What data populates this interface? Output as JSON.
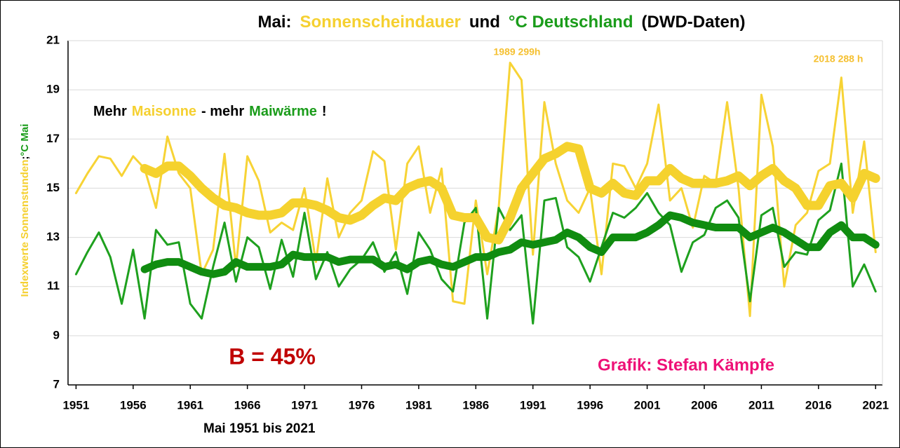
{
  "chart_data": {
    "type": "line",
    "title": [
      {
        "text": "Mai:",
        "color": "#000000"
      },
      {
        "text": "Sonnenscheindauer",
        "color": "#f5d030"
      },
      {
        "text": "und",
        "color": "#000000"
      },
      {
        "text": "°C Deutschland",
        "color": "#1a9c1a"
      },
      {
        "text": "(DWD-Daten)",
        "color": "#000000"
      }
    ],
    "subtitle": [
      {
        "text": "Mehr",
        "color": "#000000"
      },
      {
        "text": "Maisonne",
        "color": "#f5d030"
      },
      {
        "text": "- mehr",
        "color": "#000000"
      },
      {
        "text": "Maiwärme",
        "color": "#1a9c1a"
      },
      {
        "text": "!",
        "color": "#000000"
      }
    ],
    "y_label": [
      {
        "text": "Indexwerte Sonnenstunden",
        "color": "#f5d030"
      },
      {
        "text": ";",
        "color": "#000000"
      },
      {
        "text": "°C Mai",
        "color": "#1a9c1a"
      }
    ],
    "x_label": "Mai 1951 bis 2021",
    "annotations": [
      {
        "text": "1989 299h",
        "color": "#f5c030"
      },
      {
        "text": "2018 288 h",
        "color": "#f5c030"
      },
      {
        "text": "B = 45%",
        "color": "#c00000"
      },
      {
        "text": "Grafik: Stefan Kämpfe",
        "color": "#ee1177"
      }
    ],
    "x": [
      1951,
      1952,
      1953,
      1954,
      1955,
      1956,
      1957,
      1958,
      1959,
      1960,
      1961,
      1962,
      1963,
      1964,
      1965,
      1966,
      1967,
      1968,
      1969,
      1970,
      1971,
      1972,
      1973,
      1974,
      1975,
      1976,
      1977,
      1978,
      1979,
      1980,
      1981,
      1982,
      1983,
      1984,
      1985,
      1986,
      1987,
      1988,
      1989,
      1990,
      1991,
      1992,
      1993,
      1994,
      1995,
      1996,
      1997,
      1998,
      1999,
      2000,
      2001,
      2002,
      2003,
      2004,
      2005,
      2006,
      2007,
      2008,
      2009,
      2010,
      2011,
      2012,
      2013,
      2014,
      2015,
      2016,
      2017,
      2018,
      2019,
      2020,
      2021
    ],
    "series": [
      {
        "color": "#f7d335",
        "width": 3,
        "values": [
          14.8,
          15.6,
          16.3,
          16.2,
          15.5,
          16.3,
          15.8,
          14.2,
          17.1,
          15.6,
          15.0,
          11.5,
          12.5,
          16.4,
          11.8,
          16.3,
          15.3,
          13.2,
          13.6,
          13.3,
          15.0,
          12.0,
          15.4,
          13.0,
          14.0,
          14.5,
          16.5,
          16.1,
          12.5,
          16.0,
          16.7,
          14.0,
          15.8,
          10.4,
          10.3,
          14.5,
          11.5,
          14.2,
          20.1,
          19.4,
          12.3,
          18.5,
          16.0,
          14.5,
          14.0,
          15.0,
          11.5,
          16.0,
          15.9,
          15.0,
          16.0,
          18.4,
          14.5,
          15.0,
          13.4,
          15.5,
          15.2,
          18.5,
          15.0,
          9.8,
          18.8,
          16.7,
          11.0,
          13.5,
          14.0,
          15.7,
          16.0,
          19.5,
          14.0,
          16.9,
          12.4
        ]
      },
      {
        "color": "#1ea01e",
        "width": 3,
        "values": [
          11.5,
          12.4,
          13.2,
          12.2,
          10.3,
          12.5,
          9.7,
          13.3,
          12.7,
          12.8,
          10.3,
          9.7,
          11.8,
          13.6,
          11.2,
          13.0,
          12.6,
          10.9,
          12.9,
          11.4,
          14.0,
          11.3,
          12.4,
          11.0,
          11.7,
          12.1,
          12.8,
          11.6,
          12.4,
          10.7,
          13.2,
          12.5,
          11.3,
          10.8,
          13.6,
          14.2,
          9.7,
          14.2,
          13.3,
          13.9,
          9.5,
          14.5,
          14.6,
          12.6,
          12.2,
          11.2,
          12.6,
          14.0,
          13.8,
          14.2,
          14.8,
          14.0,
          13.5,
          11.6,
          12.8,
          13.1,
          14.2,
          14.5,
          13.8,
          10.4,
          13.9,
          14.2,
          11.8,
          12.4,
          12.3,
          13.7,
          14.1,
          16.0,
          11.0,
          11.9,
          10.8
        ]
      },
      {
        "color": "#f5d22e",
        "width": 13,
        "values": [
          null,
          null,
          null,
          null,
          null,
          null,
          15.8,
          15.6,
          15.9,
          15.9,
          15.5,
          15.0,
          14.6,
          14.3,
          14.2,
          14.0,
          13.9,
          13.9,
          14.0,
          14.4,
          14.4,
          14.3,
          14.1,
          13.8,
          13.7,
          13.9,
          14.3,
          14.6,
          14.5,
          15.0,
          15.2,
          15.3,
          15.0,
          13.9,
          13.8,
          13.8,
          13.0,
          12.9,
          13.8,
          15.0,
          15.6,
          16.2,
          16.4,
          16.7,
          16.6,
          15.0,
          14.8,
          15.2,
          14.8,
          14.7,
          15.3,
          15.3,
          15.8,
          15.4,
          15.2,
          15.2,
          15.2,
          15.3,
          15.5,
          15.1,
          15.5,
          15.8,
          15.3,
          15.0,
          14.3,
          14.3,
          15.1,
          15.2,
          14.6,
          15.6,
          15.4
        ]
      },
      {
        "color": "#108c10",
        "width": 11,
        "values": [
          null,
          null,
          null,
          null,
          null,
          null,
          11.7,
          11.9,
          12.0,
          12.0,
          11.8,
          11.6,
          11.5,
          11.6,
          12.0,
          11.8,
          11.8,
          11.8,
          11.9,
          12.3,
          12.2,
          12.2,
          12.2,
          12.0,
          12.1,
          12.1,
          12.1,
          11.8,
          11.9,
          11.7,
          12.0,
          12.1,
          11.9,
          11.8,
          12.0,
          12.2,
          12.2,
          12.4,
          12.5,
          12.8,
          12.7,
          12.8,
          12.9,
          13.2,
          13.0,
          12.6,
          12.4,
          13.0,
          13.0,
          13.0,
          13.2,
          13.5,
          13.9,
          13.8,
          13.6,
          13.5,
          13.4,
          13.4,
          13.4,
          13.0,
          13.2,
          13.4,
          13.2,
          12.9,
          12.6,
          12.6,
          13.2,
          13.5,
          13.0,
          13.0,
          12.7
        ]
      }
    ],
    "xlim": [
      1950.3,
      2021.6
    ],
    "xticks": [
      1951,
      1956,
      1961,
      1966,
      1971,
      1976,
      1981,
      1986,
      1991,
      1996,
      2001,
      2006,
      2011,
      2016,
      2021
    ],
    "ylim": [
      7,
      21
    ],
    "yticks": [
      7,
      9,
      11,
      13,
      15,
      17,
      19,
      21
    ],
    "grid": true
  }
}
